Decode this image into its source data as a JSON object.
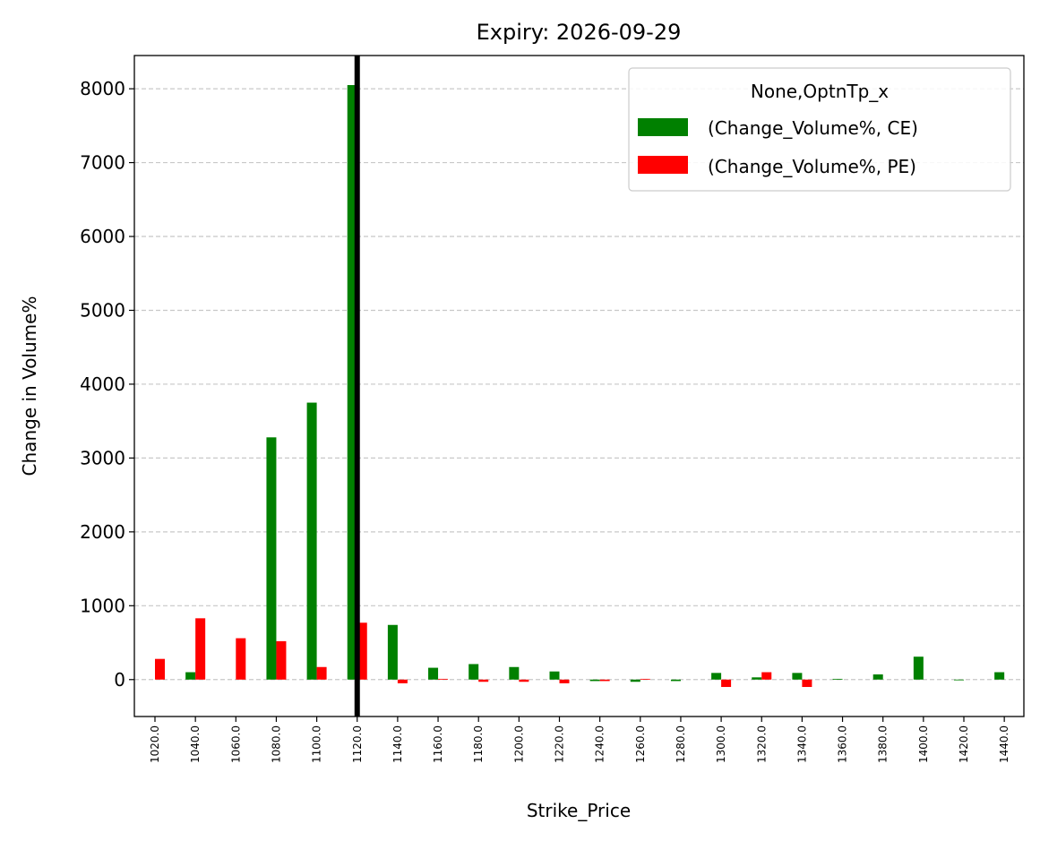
{
  "chart_data": {
    "type": "bar",
    "title": "Expiry: 2026-09-29",
    "xlabel": "Strike_Price",
    "ylabel": "Change in Volume%",
    "categories": [
      "1020.0",
      "1040.0",
      "1060.0",
      "1080.0",
      "1100.0",
      "1120.0",
      "1140.0",
      "1160.0",
      "1180.0",
      "1200.0",
      "1220.0",
      "1240.0",
      "1260.0",
      "1280.0",
      "1300.0",
      "1320.0",
      "1340.0",
      "1360.0",
      "1380.0",
      "1400.0",
      "1420.0",
      "1440.0"
    ],
    "series": [
      {
        "name": "(Change_Volume%, CE)",
        "color": "#008000",
        "values": [
          0,
          100,
          0,
          3280,
          3750,
          8050,
          740,
          160,
          210,
          170,
          110,
          -20,
          -30,
          -20,
          90,
          30,
          90,
          10,
          70,
          310,
          -10,
          100
        ]
      },
      {
        "name": "(Change_Volume%, PE)",
        "color": "#ff0000",
        "values": [
          280,
          830,
          560,
          520,
          170,
          770,
          -50,
          10,
          -30,
          -30,
          -50,
          -20,
          10,
          0,
          -100,
          100,
          -100,
          0,
          0,
          0,
          0,
          0
        ]
      }
    ],
    "yticks": [
      0,
      1000,
      2000,
      3000,
      4000,
      5000,
      6000,
      7000,
      8000
    ],
    "ylim": [
      -500,
      8450
    ],
    "grid": "y-dashed",
    "legend": {
      "title": "None,OptnTp_x",
      "position": "top-right"
    },
    "vertical_line_at": "1120.0"
  }
}
